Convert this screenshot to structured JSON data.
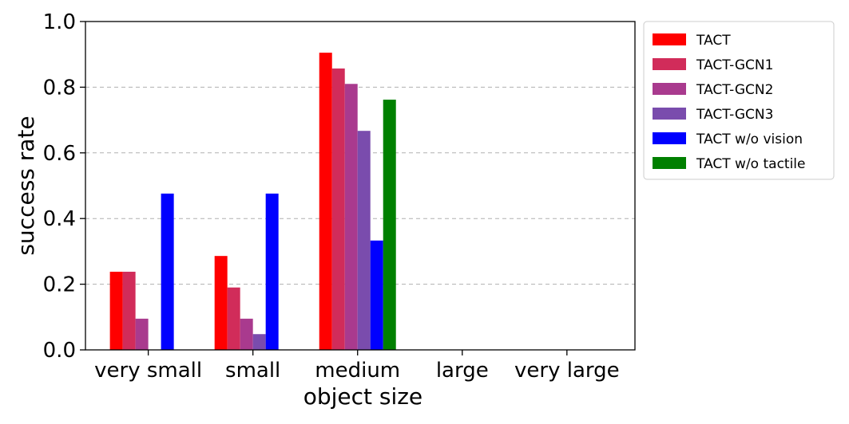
{
  "chart_data": {
    "type": "bar",
    "categories": [
      "very small",
      "small",
      "medium",
      "large",
      "very large"
    ],
    "xlabel": "object size",
    "ylabel": "success rate",
    "ylim": [
      0,
      1.0
    ],
    "yticks": [
      "0.0",
      "0.2",
      "0.4",
      "0.6",
      "0.8",
      "1.0"
    ],
    "grid": "horizontal dashed",
    "legend_position": "outside right, top",
    "series": [
      {
        "name": "TACT",
        "color": "#ff0000",
        "values": [
          0.238,
          0.286,
          0.905,
          0,
          0
        ]
      },
      {
        "name": "TACT-GCN1",
        "color": "#d12c5a",
        "values": [
          0.238,
          0.19,
          0.857,
          0,
          0
        ]
      },
      {
        "name": "TACT-GCN2",
        "color": "#a93a8e",
        "values": [
          0.095,
          0.095,
          0.81,
          0,
          0
        ]
      },
      {
        "name": "TACT-GCN3",
        "color": "#7a4cad",
        "values": [
          0,
          0.048,
          0.667,
          0,
          0
        ]
      },
      {
        "name": "TACT w/o vision",
        "color": "#0000ff",
        "values": [
          0.476,
          0.476,
          0.333,
          0,
          0
        ]
      },
      {
        "name": "TACT w/o tactile",
        "color": "#008000",
        "values": [
          0,
          0,
          0.762,
          0,
          0
        ]
      }
    ]
  }
}
